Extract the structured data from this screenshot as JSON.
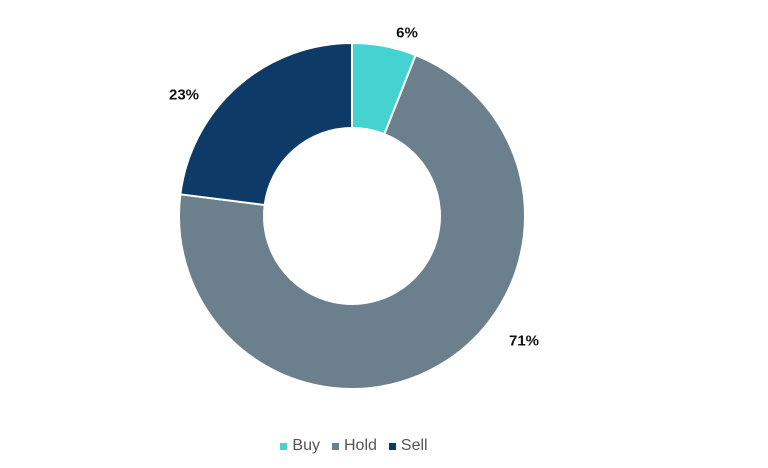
{
  "chart_data": {
    "type": "pie",
    "subtype": "donut",
    "title": "",
    "categories": [
      "Buy",
      "Hold",
      "Sell"
    ],
    "values": [
      6,
      71,
      23
    ],
    "unit": "%",
    "colors": [
      "#44d3d0",
      "#6b7f8d",
      "#0d3a66"
    ],
    "data_labels": [
      "6%",
      "71%",
      "23%"
    ],
    "legend_position": "bottom"
  },
  "legend": {
    "items": [
      {
        "label": "Buy",
        "color": "#44d3d0"
      },
      {
        "label": "Hold",
        "color": "#6b7f8d"
      },
      {
        "label": "Sell",
        "color": "#0d3a66"
      }
    ]
  }
}
